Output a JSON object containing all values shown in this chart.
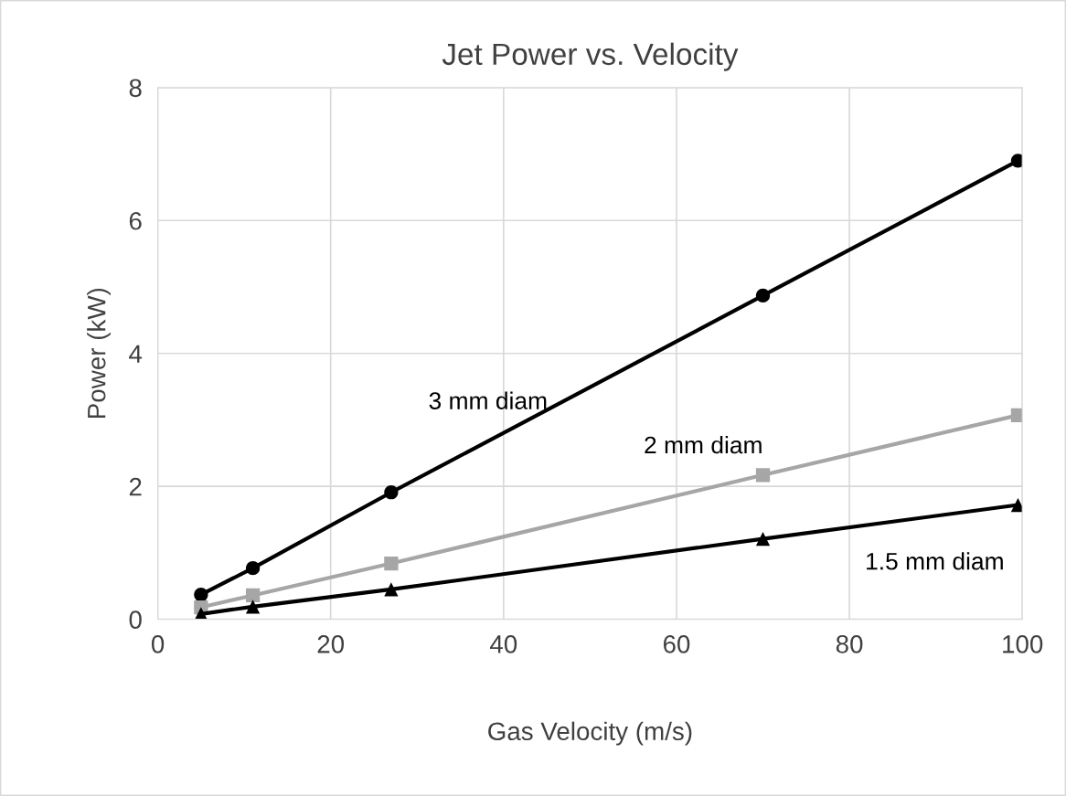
{
  "chart_data": {
    "type": "line",
    "title": "Jet Power vs. Velocity",
    "xlabel": "Gas Velocity (m/s)",
    "ylabel": "Power (kW)",
    "x": [
      5,
      11,
      27,
      70,
      99.5
    ],
    "series": [
      {
        "name": "3 mm diam",
        "color": "#000000",
        "marker": "circle",
        "values": [
          0.37,
          0.77,
          1.91,
          4.87,
          6.9
        ]
      },
      {
        "name": "2 mm diam",
        "color": "#a6a6a6",
        "marker": "square",
        "values": [
          0.18,
          0.36,
          0.84,
          2.17,
          3.07
        ]
      },
      {
        "name": "1.5 mm diam",
        "color": "#000000",
        "marker": "triangle",
        "values": [
          0.08,
          0.19,
          0.45,
          1.21,
          1.72
        ]
      }
    ],
    "xlim": [
      0,
      100
    ],
    "xticks": [
      0,
      20,
      40,
      60,
      80,
      100
    ],
    "ylim": [
      0,
      8
    ],
    "yticks": [
      0,
      2,
      4,
      6,
      8
    ],
    "grid": true,
    "legend": false,
    "line_style": "solid"
  }
}
